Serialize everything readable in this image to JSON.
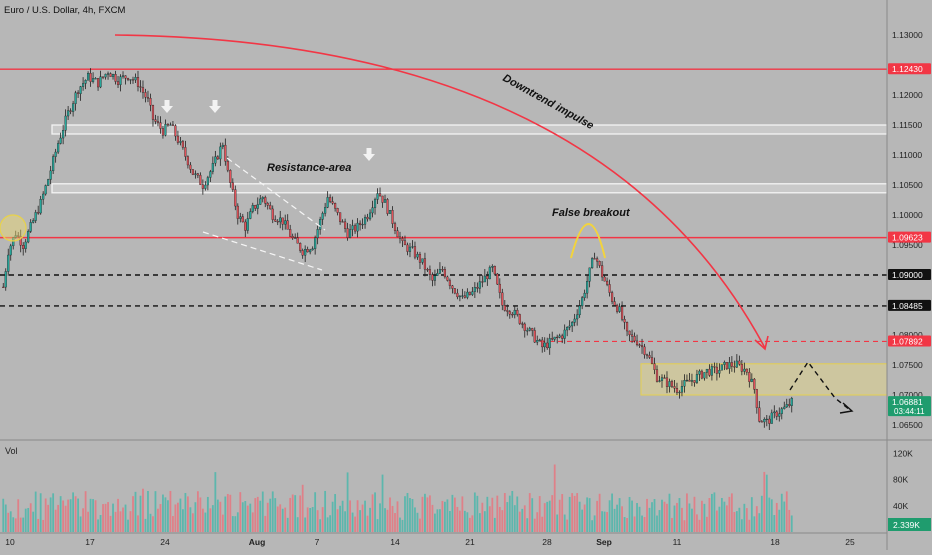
{
  "header": {
    "symbol_title": "Euro / U.S. Dollar, 4h, FXCM"
  },
  "colors": {
    "background": "#b7b7b7",
    "up_candle": "#26a69a",
    "down_candle": "#e0525a",
    "resistance_line": "#f23645",
    "zone_fill": "#cfc79e",
    "zone_border": "#e8d24a",
    "annotation_arrow": "#f23645"
  },
  "price_axis": {
    "labels": [
      "1.13000",
      "1.12000",
      "1.11500",
      "1.11000",
      "1.10500",
      "1.10000",
      "1.09500",
      "1.08000",
      "1.07500",
      "1.07000",
      "1.06500"
    ],
    "values": [
      1.13,
      1.12,
      1.115,
      1.11,
      1.105,
      1.1,
      1.095,
      1.08,
      1.075,
      1.07,
      1.065
    ],
    "range": [
      1.0625,
      1.1325
    ]
  },
  "price_tags": [
    {
      "label": "1.12430",
      "value": 1.1243,
      "style": "red"
    },
    {
      "label": "1.09623",
      "value": 1.09623,
      "style": "red"
    },
    {
      "label": "1.09000",
      "value": 1.09,
      "style": "black"
    },
    {
      "label": "1.08485",
      "value": 1.08485,
      "style": "black"
    },
    {
      "label": "1.07892",
      "value": 1.07892,
      "style": "red"
    },
    {
      "label": "1.06881",
      "value": 1.06881,
      "style": "green",
      "countdown": "03:44:11"
    }
  ],
  "volume_axis": {
    "labels": [
      "120K",
      "80K",
      "40K"
    ],
    "values": [
      120000,
      80000,
      40000
    ],
    "range": [
      0,
      130000
    ],
    "title": "Vol",
    "current_label": "2.339K"
  },
  "time_axis": {
    "labels": [
      "10",
      "17",
      "24",
      "Aug",
      "7",
      "14",
      "21",
      "28",
      "Sep",
      "11",
      "18",
      "25"
    ],
    "bold_labels": [
      "Aug",
      "Sep"
    ]
  },
  "levels": [
    {
      "value": 1.1243,
      "kind": "solid-red"
    },
    {
      "value": 1.09623,
      "kind": "solid-red"
    },
    {
      "value": 1.09,
      "kind": "dashed-black"
    },
    {
      "value": 1.08485,
      "kind": "dashed-black"
    },
    {
      "value": 1.07892,
      "kind": "dashed-red"
    }
  ],
  "resistance_bands": [
    {
      "from": 1.1135,
      "to": 1.115
    },
    {
      "from": 1.1037,
      "to": 1.1052
    }
  ],
  "demand_zone": {
    "from": 1.07,
    "to": 1.0752
  },
  "annotations": {
    "downtrend": "Downtrend impulse",
    "resistance": "Resistance-area",
    "false_breakout": "False breakout"
  },
  "chart_data": {
    "type": "candlestick",
    "title": "Euro / U.S. Dollar, 4h, FXCM",
    "ylim": [
      1.0625,
      1.1325
    ],
    "anchors": [
      [
        0,
        1.088
      ],
      [
        2,
        1.094
      ],
      [
        5,
        1.097
      ],
      [
        8,
        1.095
      ],
      [
        12,
        1.099
      ],
      [
        15,
        1.102
      ],
      [
        18,
        1.106
      ],
      [
        22,
        1.112
      ],
      [
        26,
        1.117
      ],
      [
        30,
        1.121
      ],
      [
        34,
        1.123
      ],
      [
        38,
        1.122
      ],
      [
        42,
        1.124
      ],
      [
        46,
        1.1225
      ],
      [
        50,
        1.1232
      ],
      [
        54,
        1.122
      ],
      [
        58,
        1.119
      ],
      [
        60,
        1.116
      ],
      [
        64,
        1.114
      ],
      [
        67,
        1.115
      ],
      [
        70,
        1.1125
      ],
      [
        74,
        1.109
      ],
      [
        76,
        1.107
      ],
      [
        80,
        1.105
      ],
      [
        84,
        1.108
      ],
      [
        88,
        1.112
      ],
      [
        90,
        1.107
      ],
      [
        94,
        1.1
      ],
      [
        97,
        1.098
      ],
      [
        100,
        1.101
      ],
      [
        104,
        1.103
      ],
      [
        108,
        1.1
      ],
      [
        112,
        1.099
      ],
      [
        116,
        1.096
      ],
      [
        120,
        1.094
      ],
      [
        124,
        1.095
      ],
      [
        127,
        1.099
      ],
      [
        130,
        1.103
      ],
      [
        134,
        1.1
      ],
      [
        138,
        1.097
      ],
      [
        142,
        1.098
      ],
      [
        146,
        1.1
      ],
      [
        150,
        1.104
      ],
      [
        153,
        1.102
      ],
      [
        156,
        1.099
      ],
      [
        160,
        1.095
      ],
      [
        164,
        1.094
      ],
      [
        168,
        1.092
      ],
      [
        172,
        1.089
      ],
      [
        176,
        1.091
      ],
      [
        180,
        1.088
      ],
      [
        184,
        1.086
      ],
      [
        188,
        1.087
      ],
      [
        192,
        1.089
      ],
      [
        196,
        1.091
      ],
      [
        200,
        1.085
      ],
      [
        204,
        1.084
      ],
      [
        208,
        1.082
      ],
      [
        212,
        1.08
      ],
      [
        216,
        1.078
      ],
      [
        220,
        1.079
      ],
      [
        224,
        1.08
      ],
      [
        228,
        1.082
      ],
      [
        232,
        1.086
      ],
      [
        234,
        1.089
      ],
      [
        236,
        1.092
      ],
      [
        237,
        1.0935
      ],
      [
        240,
        1.09
      ],
      [
        244,
        1.086
      ],
      [
        247,
        1.084
      ],
      [
        250,
        1.08
      ],
      [
        254,
        1.079
      ],
      [
        258,
        1.077
      ],
      [
        262,
        1.073
      ],
      [
        266,
        1.072
      ],
      [
        270,
        1.071
      ],
      [
        274,
        1.072
      ],
      [
        278,
        1.073
      ],
      [
        282,
        1.074
      ],
      [
        286,
        1.074
      ],
      [
        290,
        1.075
      ],
      [
        294,
        1.075
      ],
      [
        298,
        1.074
      ],
      [
        301,
        1.071
      ],
      [
        303,
        1.066
      ],
      [
        306,
        1.0655
      ],
      [
        310,
        1.067
      ],
      [
        314,
        1.068
      ],
      [
        316,
        1.0688
      ]
    ]
  }
}
